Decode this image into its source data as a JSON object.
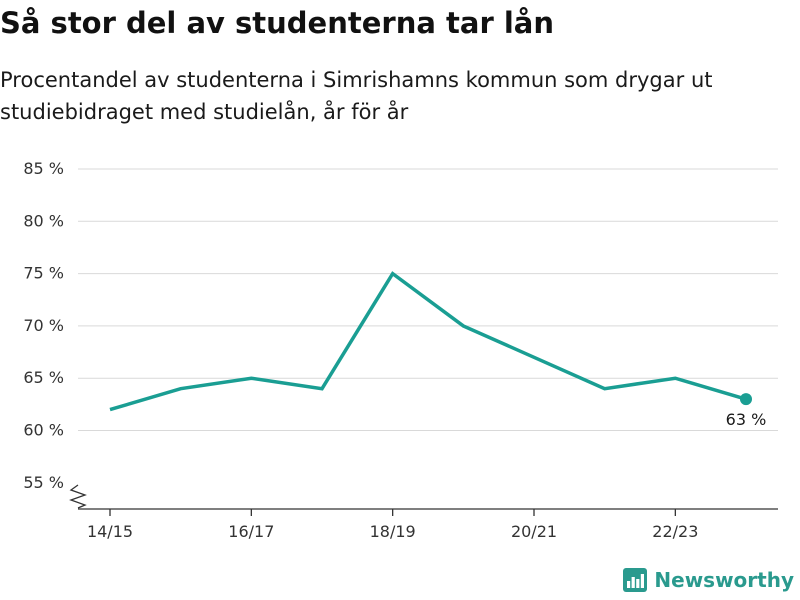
{
  "title": "Så stor del av studenterna tar lån",
  "subtitle": "Procentandel av studenterna i Simrishamns kommun som drygar ut studiebidraget med studielån, år för år",
  "brand": {
    "name": "Newsworthy",
    "color": "#2a9a8e",
    "icon": "bar-chart-logo-icon"
  },
  "chart_data": {
    "type": "line",
    "title": "Så stor del av studenterna tar lån",
    "subtitle": "Procentandel av studenterna i Simrishamns kommun som drygar ut studiebidraget med studielån, år för år",
    "xlabel": "",
    "ylabel": "",
    "x": [
      "14/15",
      "15/16",
      "16/17",
      "17/18",
      "18/19",
      "19/20",
      "20/21",
      "21/22",
      "22/23",
      "23/24"
    ],
    "x_tick_labels": [
      "14/15",
      "16/17",
      "18/19",
      "20/21",
      "22/23"
    ],
    "series": [
      {
        "values": [
          62,
          64,
          65,
          64,
          75,
          70,
          67,
          64,
          65,
          63
        ],
        "color": "#1a9e93"
      }
    ],
    "y_ticks": [
      55,
      60,
      65,
      70,
      75,
      80,
      85
    ],
    "y_tick_labels": [
      "55 %",
      "60 %",
      "65 %",
      "70 %",
      "75 %",
      "80 %",
      "85 %"
    ],
    "ylim": [
      52.5,
      85
    ],
    "axis_break": true,
    "grid": true,
    "legend": "none",
    "end_label": "63 %"
  }
}
